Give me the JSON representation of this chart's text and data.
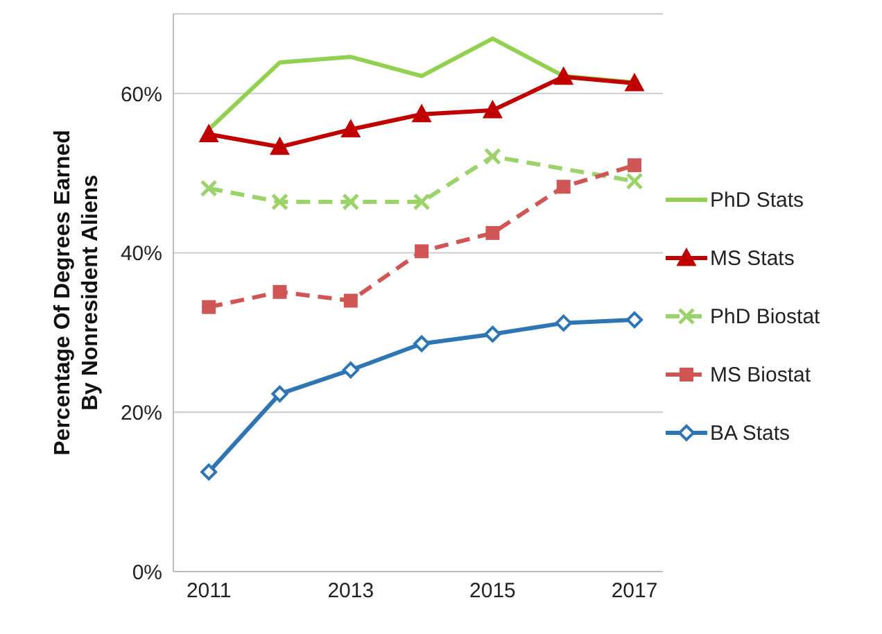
{
  "chart_data": {
    "type": "line",
    "ylabel": "Percentage Of Degrees Earned\nBy  Nonresident Aliens",
    "x": [
      2011,
      2012,
      2013,
      2014,
      2015,
      2016,
      2017
    ],
    "xlim": [
      2010.5,
      2017.4
    ],
    "xticks": [
      2011,
      2013,
      2015,
      2017
    ],
    "ylim": [
      0,
      70
    ],
    "yticks": [
      {
        "value": 0,
        "label": "0%"
      },
      {
        "value": 20,
        "label": "20%"
      },
      {
        "value": 40,
        "label": "40%"
      },
      {
        "value": 60,
        "label": "60%"
      }
    ],
    "grid": "y",
    "legend": "right",
    "series": [
      {
        "name": "PhD Stats",
        "color": "#92d050",
        "marker": "none",
        "line_style": "solid",
        "values": [
          55.5,
          63.9,
          64.6,
          62.2,
          66.9,
          62.2,
          61.4
        ]
      },
      {
        "name": "MS Stats",
        "color": "#c00000",
        "marker": "triangle",
        "line_style": "solid",
        "values": [
          54.9,
          53.3,
          55.5,
          57.4,
          57.9,
          62.1,
          61.3
        ]
      },
      {
        "name": "PhD Biostat",
        "color": "#9bd36a",
        "marker": "cross",
        "line_style": "dashed",
        "values": [
          48.1,
          46.4,
          46.4,
          46.4,
          52.1,
          null,
          49.0
        ]
      },
      {
        "name": "MS Biostat",
        "color": "#d05656",
        "marker": "square",
        "line_style": "dashed",
        "values": [
          33.2,
          35.1,
          34.0,
          40.2,
          42.5,
          48.3,
          51.0
        ]
      },
      {
        "name": "BA Stats",
        "color": "#2e75b6",
        "marker": "diamond",
        "line_style": "solid",
        "values": [
          12.5,
          22.3,
          25.3,
          28.6,
          29.8,
          31.2,
          31.6
        ]
      }
    ]
  }
}
